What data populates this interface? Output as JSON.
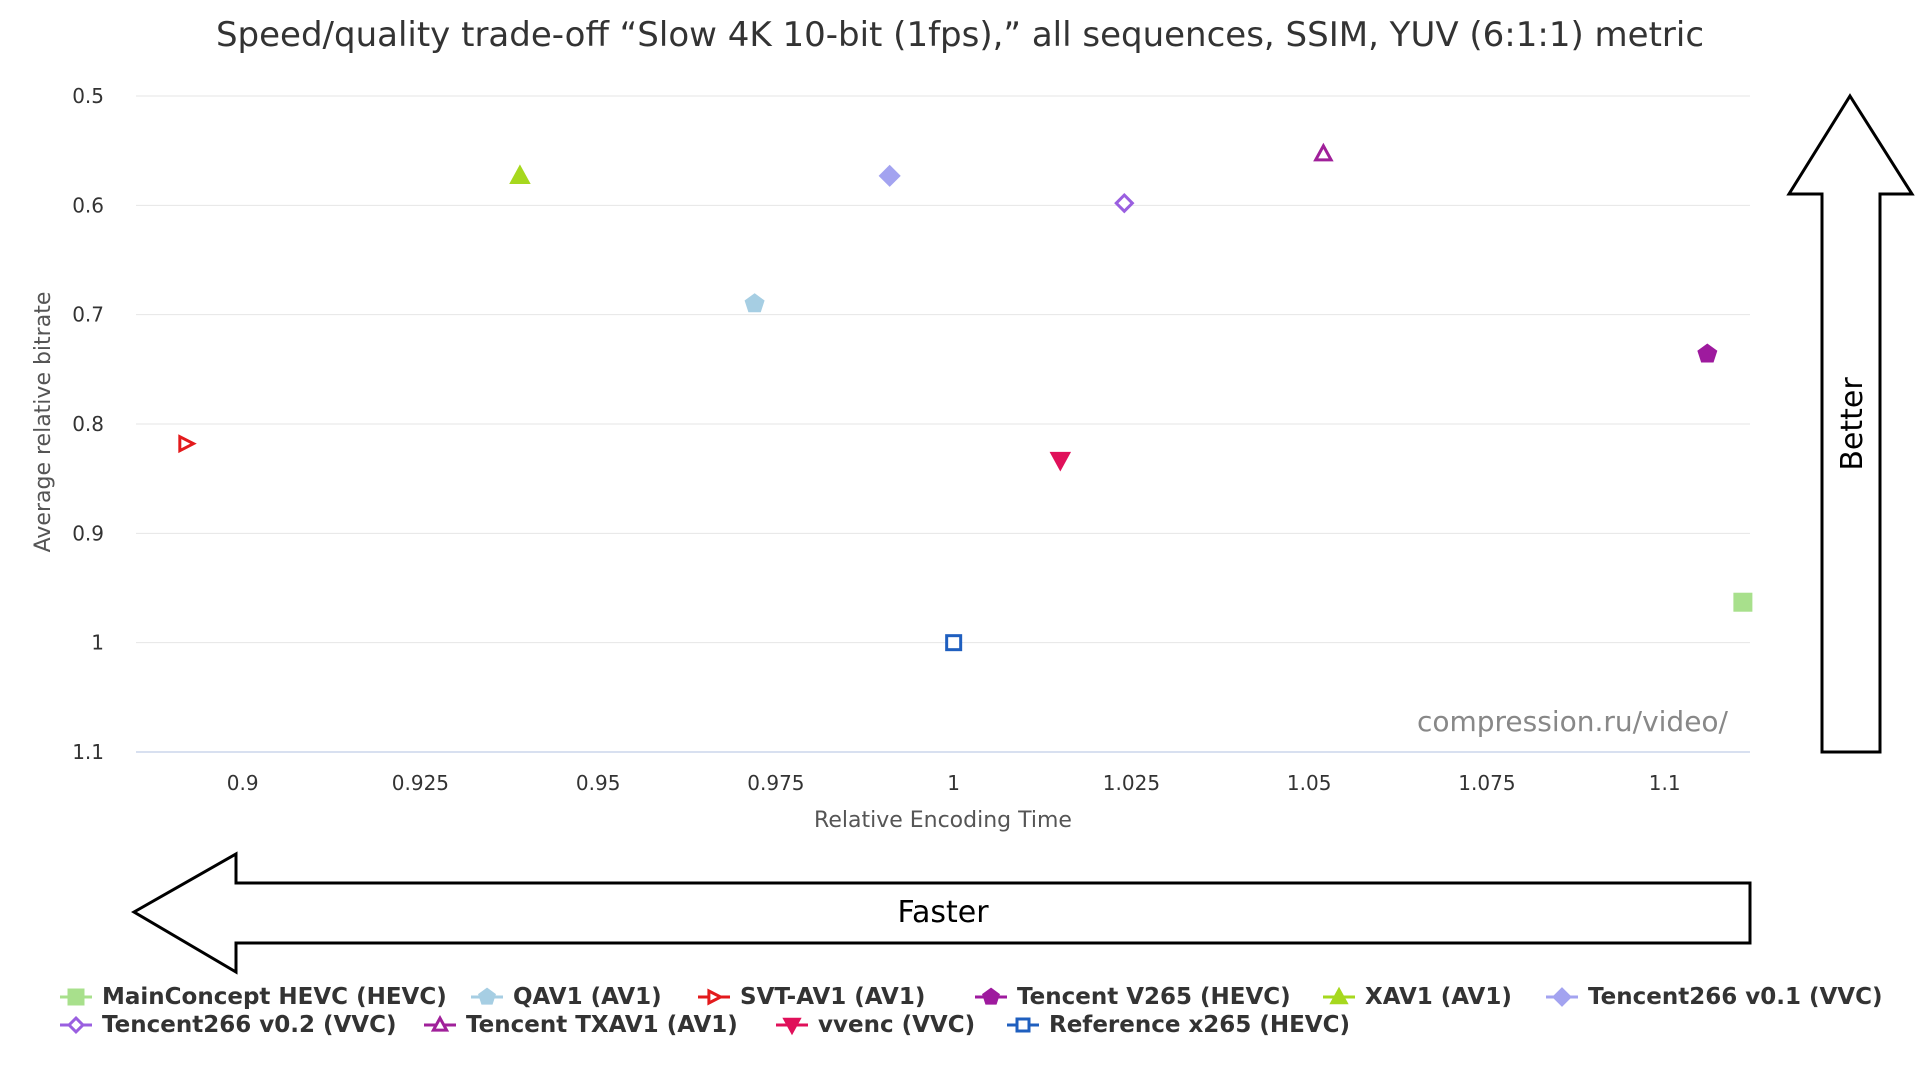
{
  "chart_data": {
    "type": "scatter",
    "title": "Speed/quality trade-off “Slow 4K 10-bit (1fps),” all sequences, SSIM, YUV (6:1:1) metric",
    "xlabel": "Relative Encoding Time",
    "ylabel": "Average relative bitrate",
    "xlim": [
      0.885,
      1.112
    ],
    "ylim": [
      0.5,
      1.1
    ],
    "y_reversed": true,
    "x_ticks": [
      "0.9",
      "0.925",
      "0.95",
      "0.975",
      "1",
      "1.025",
      "1.05",
      "1.075",
      "1.1"
    ],
    "y_ticks": [
      "0.5",
      "0.6",
      "0.7",
      "0.8",
      "0.9",
      "1",
      "1.1"
    ],
    "grid": "horizontal",
    "legend_position": "bottom",
    "series": [
      {
        "name": "MainConcept HEVC (HEVC)",
        "marker": "square",
        "color": "#a8e08c",
        "x": 1.111,
        "y": 0.963
      },
      {
        "name": "QAV1 (AV1)",
        "marker": "pentagon",
        "color": "#a6cee3",
        "x": 0.972,
        "y": 0.69
      },
      {
        "name": "SVT-AV1 (AV1)",
        "marker": "triangle-right-open",
        "color": "#e31a1c",
        "x": 0.892,
        "y": 0.818
      },
      {
        "name": "Tencent V265 (HEVC)",
        "marker": "pentagon",
        "color": "#9e1a9e",
        "x": 1.106,
        "y": 0.736
      },
      {
        "name": "XAV1 (AV1)",
        "marker": "triangle-up",
        "color": "#a6d81e",
        "x": 0.939,
        "y": 0.573
      },
      {
        "name": "Tencent266 v0.1 (VVC)",
        "marker": "diamond",
        "color": "#a3a3f0",
        "x": 0.991,
        "y": 0.573
      },
      {
        "name": "Tencent266 v0.2 (VVC)",
        "marker": "diamond-open",
        "color": "#9a5fe0",
        "x": 1.024,
        "y": 0.598
      },
      {
        "name": "Tencent TXAV1 (AV1)",
        "marker": "triangle-up-open",
        "color": "#a0209a",
        "x": 1.052,
        "y": 0.553
      },
      {
        "name": "vvenc (VVC)",
        "marker": "triangle-down",
        "color": "#e0105a",
        "x": 1.015,
        "y": 0.833
      },
      {
        "name": "Reference x265 (HEVC)",
        "marker": "square-open",
        "color": "#1f5fbf",
        "x": 1.0,
        "y": 1.0
      }
    ],
    "annotations": {
      "faster_label": "Faster",
      "better_label": "Better",
      "watermark": "compression.ru/video/"
    }
  }
}
